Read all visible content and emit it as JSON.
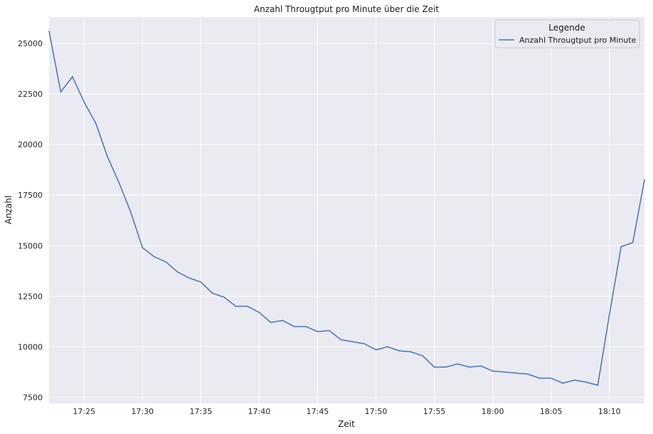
{
  "chart_data": {
    "type": "line",
    "title": "Anzahl Througtput pro Minute über die Zeit",
    "xlabel": "Zeit",
    "ylabel": "Anzahl",
    "grid": true,
    "legend": {
      "title": "Legende",
      "placement": "top-right"
    },
    "xlim": [
      "17:22",
      "18:13"
    ],
    "ylim": [
      7200,
      26300
    ],
    "x_ticks": [
      "17:25",
      "17:30",
      "17:35",
      "17:40",
      "17:45",
      "17:50",
      "17:55",
      "18:00",
      "18:05",
      "18:10"
    ],
    "y_ticks": [
      7500,
      10000,
      12500,
      15000,
      17500,
      20000,
      22500,
      25000
    ],
    "y_tick_labels": [
      "7500",
      "10000",
      "12500",
      "15000",
      "17500",
      "20000",
      "22500",
      "25000"
    ],
    "x": [
      "17:22",
      "17:23",
      "17:24",
      "17:25",
      "17:26",
      "17:27",
      "17:28",
      "17:29",
      "17:30",
      "17:31",
      "17:32",
      "17:33",
      "17:34",
      "17:35",
      "17:36",
      "17:37",
      "17:38",
      "17:39",
      "17:40",
      "17:41",
      "17:42",
      "17:43",
      "17:44",
      "17:45",
      "17:46",
      "17:47",
      "17:48",
      "17:49",
      "17:50",
      "17:51",
      "17:52",
      "17:53",
      "17:54",
      "17:55",
      "17:56",
      "17:57",
      "17:58",
      "17:59",
      "18:00",
      "18:01",
      "18:02",
      "18:03",
      "18:04",
      "18:05",
      "18:06",
      "18:07",
      "18:08",
      "18:09",
      "18:10",
      "18:11",
      "18:12",
      "18:13"
    ],
    "series": [
      {
        "name": "Anzahl Througtput pro Minute",
        "color": "#4c72b0",
        "values": [
          25600,
          22600,
          23350,
          22100,
          21050,
          19400,
          18100,
          16650,
          14900,
          14450,
          14200,
          13700,
          13400,
          13200,
          12650,
          12450,
          12000,
          12000,
          11700,
          11200,
          11300,
          11000,
          11000,
          10750,
          10800,
          10350,
          10250,
          10150,
          9850,
          10000,
          9800,
          9750,
          9550,
          9000,
          9000,
          9150,
          9000,
          9050,
          8800,
          8750,
          8700,
          8650,
          8450,
          8450,
          8200,
          8350,
          8250,
          8100,
          11600,
          14950,
          15150,
          18250
        ]
      }
    ],
    "colors": {
      "background": "#eaeaf2",
      "grid": "#ffffff",
      "line": "#4c72b0",
      "legend_fill": "#eaeaf2",
      "legend_border": "#cccccc"
    }
  }
}
